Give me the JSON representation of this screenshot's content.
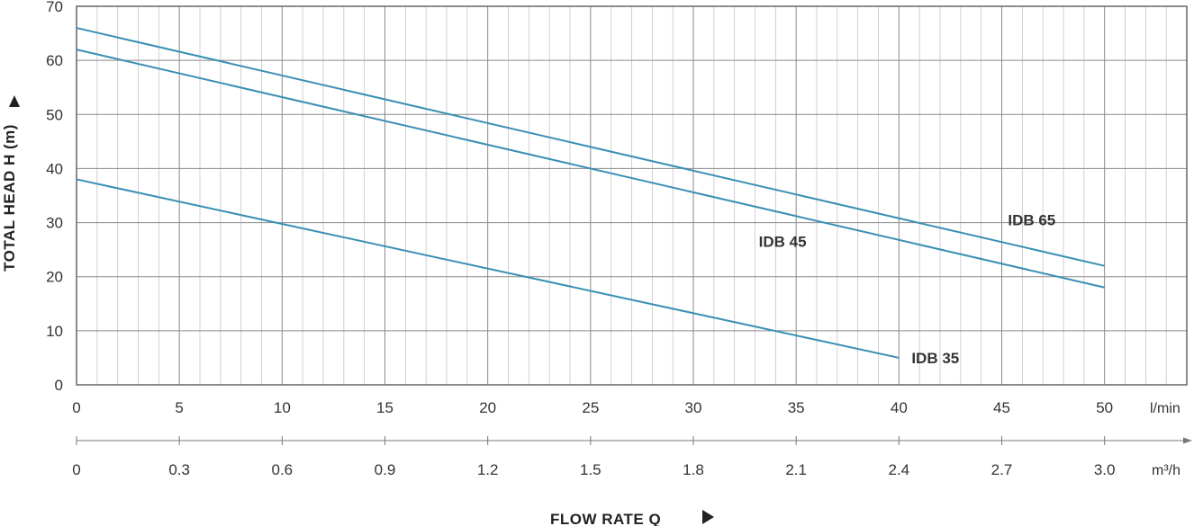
{
  "chart_data": {
    "type": "line",
    "ylabel": "TOTAL HEAD H (m)",
    "xlabel": "FLOW RATE Q",
    "x_unit": "l/min",
    "x2_unit": "m³/h",
    "ylim": [
      0,
      70
    ],
    "xlim": [
      0,
      54
    ],
    "y_ticks": [
      "0",
      "10",
      "20",
      "30",
      "40",
      "50",
      "60",
      "70"
    ],
    "x_ticks": [
      "0",
      "5",
      "10",
      "15",
      "20",
      "25",
      "30",
      "35",
      "40",
      "45",
      "50"
    ],
    "x2_ticks": [
      "0",
      "0.3",
      "0.6",
      "0.9",
      "1.2",
      "1.5",
      "1.8",
      "2.1",
      "2.4",
      "2.7",
      "3.0"
    ],
    "grid": true,
    "series_color": "#3a8fb5",
    "series": [
      {
        "name": "IDB 35",
        "x": [
          0,
          40
        ],
        "y": [
          38,
          5
        ]
      },
      {
        "name": "IDB 45",
        "x": [
          0,
          50
        ],
        "y": [
          62,
          18
        ]
      },
      {
        "name": "IDB 65",
        "x": [
          0,
          50
        ],
        "y": [
          66,
          22
        ]
      }
    ]
  }
}
